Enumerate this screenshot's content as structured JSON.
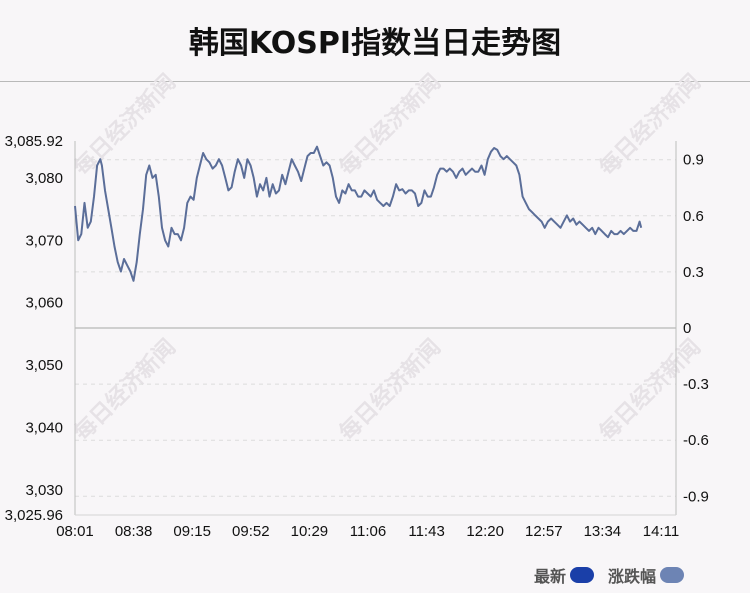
{
  "title": "韩国KOSPI指数当日走势图",
  "watermark": "每日经济新闻",
  "legend": [
    {
      "label": "最新",
      "color": "#1a3fa8"
    },
    {
      "label": "涨跌幅",
      "color": "#6d84b4"
    }
  ],
  "colors": {
    "line": "#5b6e99",
    "zero_line": "#cfcfcf",
    "grid": "#dcdcdc"
  },
  "chart_data": {
    "type": "line",
    "title": "韩国KOSPI指数当日走势图",
    "ylim": [
      3025.96,
      3085.92
    ],
    "y2lim": [
      -1.0,
      1.0
    ],
    "y_ticks": [
      {
        "value": 3085.92,
        "label": "3,085.92"
      },
      {
        "value": 3080,
        "label": "3,080"
      },
      {
        "value": 3070,
        "label": "3,070"
      },
      {
        "value": 3060,
        "label": "3,060"
      },
      {
        "value": 3050,
        "label": "3,050"
      },
      {
        "value": 3040,
        "label": "3,040"
      },
      {
        "value": 3030,
        "label": "3,030"
      },
      {
        "value": 3025.96,
        "label": "3,025.96"
      }
    ],
    "y2_ticks": [
      {
        "value": 0.9,
        "label": "0.9"
      },
      {
        "value": 0.6,
        "label": "0.6"
      },
      {
        "value": 0.3,
        "label": "0.3"
      },
      {
        "value": 0,
        "label": "0"
      },
      {
        "value": -0.3,
        "label": "-0.3"
      },
      {
        "value": -0.6,
        "label": "-0.6"
      },
      {
        "value": -0.9,
        "label": "-0.9"
      }
    ],
    "x_ticks": [
      "08:01",
      "08:38",
      "09:15",
      "09:52",
      "10:29",
      "11:06",
      "11:43",
      "12:20",
      "12:57",
      "13:34",
      "14:11"
    ],
    "x_range_minutes": [
      0,
      380
    ],
    "series": [
      {
        "type": "line",
        "points": [
          [
            0,
            3075.5
          ],
          [
            2,
            3070
          ],
          [
            4,
            3071
          ],
          [
            6,
            3076
          ],
          [
            8,
            3072
          ],
          [
            10,
            3073
          ],
          [
            12,
            3077
          ],
          [
            14,
            3082
          ],
          [
            16,
            3083
          ],
          [
            17,
            3082
          ],
          [
            19,
            3078
          ],
          [
            21,
            3075
          ],
          [
            23,
            3072
          ],
          [
            25,
            3069
          ],
          [
            27,
            3066.5
          ],
          [
            29,
            3065
          ],
          [
            31,
            3067
          ],
          [
            33,
            3066
          ],
          [
            35,
            3065
          ],
          [
            37,
            3063.5
          ],
          [
            39,
            3066.5
          ],
          [
            41,
            3071
          ],
          [
            43,
            3075
          ],
          [
            45,
            3080.5
          ],
          [
            47,
            3082
          ],
          [
            49,
            3080
          ],
          [
            51,
            3080.5
          ],
          [
            53,
            3077
          ],
          [
            55,
            3072
          ],
          [
            57,
            3070
          ],
          [
            59,
            3069
          ],
          [
            61,
            3072
          ],
          [
            63,
            3071
          ],
          [
            65,
            3071
          ],
          [
            67,
            3070
          ],
          [
            69,
            3072
          ],
          [
            71,
            3076
          ],
          [
            73,
            3077
          ],
          [
            75,
            3076.5
          ],
          [
            77,
            3080
          ],
          [
            79,
            3082
          ],
          [
            81,
            3084
          ],
          [
            83,
            3083
          ],
          [
            85,
            3082.5
          ],
          [
            87,
            3081.5
          ],
          [
            89,
            3082
          ],
          [
            91,
            3083
          ],
          [
            93,
            3082
          ],
          [
            95,
            3080
          ],
          [
            97,
            3078
          ],
          [
            99,
            3078.5
          ],
          [
            101,
            3081
          ],
          [
            103,
            3083
          ],
          [
            105,
            3082
          ],
          [
            107,
            3080
          ],
          [
            109,
            3083
          ],
          [
            111,
            3082
          ],
          [
            113,
            3080
          ],
          [
            115,
            3077
          ],
          [
            117,
            3079
          ],
          [
            119,
            3078
          ],
          [
            121,
            3080
          ],
          [
            123,
            3077
          ],
          [
            125,
            3079
          ],
          [
            127,
            3077.5
          ],
          [
            129,
            3078
          ],
          [
            131,
            3080.5
          ],
          [
            133,
            3079
          ],
          [
            135,
            3081
          ],
          [
            137,
            3083
          ],
          [
            139,
            3082
          ],
          [
            141,
            3081
          ],
          [
            143,
            3079.5
          ],
          [
            145,
            3081.5
          ],
          [
            147,
            3083.5
          ],
          [
            149,
            3084
          ],
          [
            151,
            3084
          ],
          [
            153,
            3085
          ],
          [
            155,
            3083.5
          ],
          [
            157,
            3082
          ],
          [
            159,
            3082.5
          ],
          [
            161,
            3082
          ],
          [
            163,
            3080
          ],
          [
            165,
            3077
          ],
          [
            167,
            3076
          ],
          [
            169,
            3078
          ],
          [
            171,
            3077.5
          ],
          [
            173,
            3079
          ],
          [
            175,
            3078
          ],
          [
            177,
            3078
          ],
          [
            179,
            3077
          ],
          [
            181,
            3077
          ],
          [
            183,
            3078
          ],
          [
            185,
            3077.5
          ],
          [
            187,
            3077
          ],
          [
            189,
            3078
          ],
          [
            191,
            3076.5
          ],
          [
            193,
            3076
          ],
          [
            195,
            3075.5
          ],
          [
            197,
            3076
          ],
          [
            199,
            3075.5
          ],
          [
            201,
            3077
          ],
          [
            203,
            3079
          ],
          [
            205,
            3078
          ],
          [
            207,
            3078.2
          ],
          [
            209,
            3077.5
          ],
          [
            211,
            3078
          ],
          [
            213,
            3078
          ],
          [
            215,
            3077.5
          ],
          [
            217,
            3075.5
          ],
          [
            219,
            3076
          ],
          [
            221,
            3078
          ],
          [
            223,
            3077
          ],
          [
            225,
            3077
          ],
          [
            227,
            3078.5
          ],
          [
            229,
            3080.5
          ],
          [
            231,
            3081.5
          ],
          [
            233,
            3081.5
          ],
          [
            235,
            3081
          ],
          [
            237,
            3081.5
          ],
          [
            239,
            3081
          ],
          [
            241,
            3080
          ],
          [
            243,
            3081
          ],
          [
            245,
            3081.5
          ],
          [
            247,
            3080.5
          ],
          [
            249,
            3081
          ],
          [
            251,
            3081.5
          ],
          [
            253,
            3081
          ],
          [
            255,
            3081
          ],
          [
            257,
            3082
          ],
          [
            259,
            3080.5
          ],
          [
            261,
            3083
          ],
          [
            263,
            3084.2
          ],
          [
            265,
            3084.8
          ],
          [
            267,
            3084.5
          ],
          [
            269,
            3083.5
          ],
          [
            271,
            3083
          ],
          [
            273,
            3083.5
          ],
          [
            275,
            3083
          ],
          [
            277,
            3082.5
          ],
          [
            279,
            3082
          ],
          [
            281,
            3080.5
          ],
          [
            283,
            3077
          ],
          [
            285,
            3076
          ],
          [
            287,
            3075
          ],
          [
            289,
            3074.5
          ],
          [
            291,
            3074
          ],
          [
            293,
            3073.5
          ],
          [
            295,
            3073
          ],
          [
            297,
            3072
          ],
          [
            299,
            3073
          ],
          [
            301,
            3073.5
          ],
          [
            303,
            3073
          ],
          [
            305,
            3072.5
          ],
          [
            307,
            3072
          ],
          [
            309,
            3073
          ],
          [
            311,
            3074
          ],
          [
            313,
            3073
          ],
          [
            315,
            3073.5
          ],
          [
            317,
            3072.5
          ],
          [
            319,
            3073
          ],
          [
            321,
            3072.5
          ],
          [
            323,
            3072
          ],
          [
            325,
            3071.5
          ],
          [
            327,
            3072
          ],
          [
            329,
            3071
          ],
          [
            331,
            3072
          ],
          [
            333,
            3071.5
          ],
          [
            335,
            3071
          ],
          [
            337,
            3070.5
          ],
          [
            339,
            3071.5
          ],
          [
            341,
            3071
          ],
          [
            343,
            3071
          ],
          [
            345,
            3071.5
          ],
          [
            347,
            3071
          ],
          [
            349,
            3071.5
          ],
          [
            351,
            3072
          ],
          [
            353,
            3071.5
          ],
          [
            355,
            3071.5
          ],
          [
            357,
            3073
          ],
          [
            358,
            3072
          ]
        ]
      }
    ],
    "grid": true,
    "legend_position": "bottom-right"
  }
}
